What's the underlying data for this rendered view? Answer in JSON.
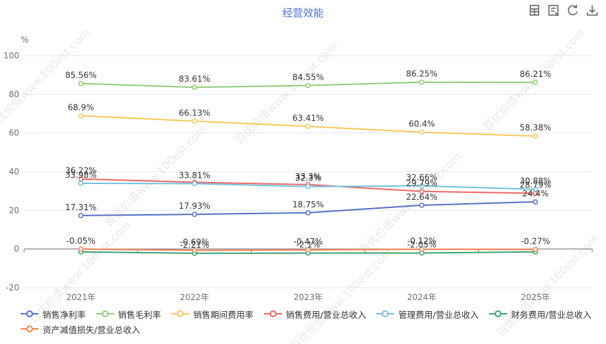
{
  "header": {
    "title": "经营效能"
  },
  "toolbar": {
    "tools": [
      "table-icon",
      "data-view-icon",
      "refresh-icon",
      "download-icon"
    ]
  },
  "chart_data": {
    "type": "line",
    "title": "经营效能",
    "ylabel": "%",
    "ylim": [
      -20,
      100
    ],
    "yticks": [
      -20,
      0,
      20,
      40,
      60,
      80,
      100
    ],
    "categories": [
      "2021年",
      "2022年",
      "2023年",
      "2024年",
      "2025年"
    ],
    "grid": true,
    "legend_position": "bottom",
    "series": [
      {
        "name": "销售净利率",
        "color": "#5470c6",
        "values": [
          17.31,
          17.93,
          18.75,
          22.64,
          24.4
        ],
        "labels": [
          "17.31%",
          "17.93%",
          "18.75%",
          "22.64%",
          "24.4%"
        ]
      },
      {
        "name": "销售毛利率",
        "color": "#91cc75",
        "values": [
          85.56,
          83.61,
          84.55,
          86.25,
          86.21
        ],
        "labels": [
          "85.56%",
          "83.61%",
          "84.55%",
          "86.25%",
          "86.21%"
        ]
      },
      {
        "name": "销售期间费用率",
        "color": "#fac858",
        "values": [
          68.9,
          66.13,
          63.41,
          60.4,
          58.38
        ],
        "labels": [
          "68.9%",
          "66.13%",
          "63.41%",
          "60.4%",
          "58.38%"
        ]
      },
      {
        "name": "销售费用/营业总收入",
        "color": "#ee6666",
        "values": [
          36.22,
          34.5,
          33.3,
          29.79,
          28.79
        ],
        "labels": [
          "36.22%",
          "",
          "33.3%",
          "29.79%",
          "28.79%"
        ]
      },
      {
        "name": "管理费用/营业总收入",
        "color": "#73c0de",
        "values": [
          33.98,
          33.81,
          32.3,
          32.66,
          30.88
        ],
        "labels": [
          "33.98%",
          "33.81%",
          "32.3%",
          "32.66%",
          "30.88%"
        ]
      },
      {
        "name": "财务费用/营业总收入",
        "color": "#3ba272",
        "values": [
          -1.5,
          -2.21,
          -2.1,
          -2.05,
          -1.5
        ],
        "labels": [
          "",
          "-2.21%",
          "-2.1%",
          "-2.05%",
          ""
        ]
      },
      {
        "name": "资产减值损失/营业总收入",
        "color": "#fc8452",
        "values": [
          -0.05,
          -0.69,
          -0.47,
          -0.12,
          -0.27
        ],
        "labels": [
          "-0.05%",
          "-0.69%",
          "-0.47%",
          "-0.12%",
          "-0.27%"
        ]
      }
    ]
  },
  "watermark": "百优价值www.100est.com"
}
